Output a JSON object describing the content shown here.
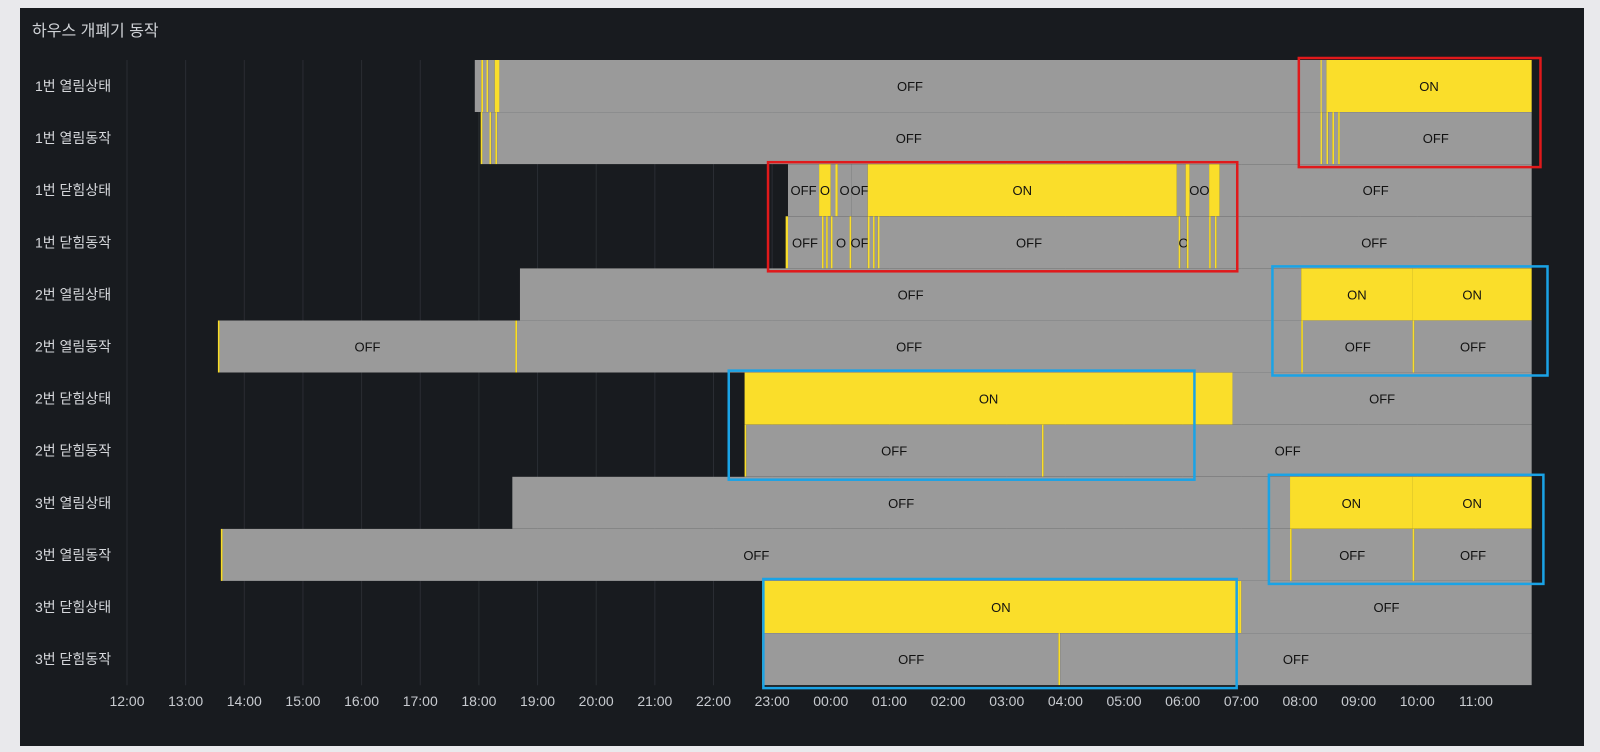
{
  "panel": {
    "title": "하우스 개폐기 동작"
  },
  "colors": {
    "on": "#fade2a",
    "off": "#9a9a9a",
    "panel_bg": "#181b1f",
    "grid": "#2a2d33",
    "highlight_red": "#e0191b",
    "highlight_blue": "#1aa3e6"
  },
  "chart_data": {
    "type": "state-timeline",
    "x_unit": "hours since 12:00",
    "x_ticks": [
      "12:00",
      "13:00",
      "14:00",
      "15:00",
      "16:00",
      "17:00",
      "18:00",
      "19:00",
      "20:00",
      "21:00",
      "22:00",
      "23:00",
      "00:00",
      "01:00",
      "02:00",
      "03:00",
      "04:00",
      "05:00",
      "06:00",
      "07:00",
      "08:00",
      "09:00",
      "10:00",
      "11:00"
    ],
    "xlim": [
      0,
      23.95
    ],
    "rows": [
      {
        "label": "1번 열림상태",
        "segments": [
          [
            5.93,
            6.04,
            "OFF",
            ""
          ],
          [
            6.04,
            6.07,
            "ON",
            ""
          ],
          [
            6.07,
            6.13,
            "OFF",
            ""
          ],
          [
            6.13,
            6.16,
            "ON",
            ""
          ],
          [
            6.16,
            6.27,
            "OFF",
            ""
          ],
          [
            6.27,
            6.35,
            "ON",
            ""
          ],
          [
            6.35,
            20.35,
            "OFF",
            "OFF"
          ],
          [
            20.35,
            20.37,
            "ON",
            ""
          ],
          [
            20.37,
            20.45,
            "OFF",
            ""
          ],
          [
            20.45,
            23.95,
            "ON",
            "ON"
          ]
        ]
      },
      {
        "label": "1번 열림동작",
        "segments": [
          [
            6.03,
            6.06,
            "ON",
            ""
          ],
          [
            6.06,
            6.18,
            "OFF",
            ""
          ],
          [
            6.18,
            6.21,
            "ON",
            ""
          ],
          [
            6.21,
            6.28,
            "OFF",
            ""
          ],
          [
            6.28,
            6.31,
            "ON",
            ""
          ],
          [
            6.31,
            20.35,
            "OFF",
            "OFF"
          ],
          [
            20.35,
            20.38,
            "ON",
            ""
          ],
          [
            20.38,
            20.45,
            "OFF",
            ""
          ],
          [
            20.45,
            20.48,
            "ON",
            ""
          ],
          [
            20.48,
            20.55,
            "OFF",
            ""
          ],
          [
            20.55,
            20.58,
            "ON",
            ""
          ],
          [
            20.58,
            20.65,
            "OFF",
            ""
          ],
          [
            20.65,
            20.68,
            "ON",
            ""
          ],
          [
            20.68,
            23.95,
            "OFF",
            "OFF"
          ]
        ]
      },
      {
        "label": "1번 닫힘상태",
        "segments": [
          [
            11.27,
            11.8,
            "OFF",
            "OFF"
          ],
          [
            11.8,
            12.0,
            "ON",
            "O"
          ],
          [
            12.0,
            12.08,
            "OFF",
            ""
          ],
          [
            12.08,
            12.12,
            "ON",
            ""
          ],
          [
            12.12,
            12.35,
            "OFF",
            "O"
          ],
          [
            12.35,
            12.63,
            "OFF",
            "OF"
          ],
          [
            12.63,
            17.9,
            "ON",
            "ON"
          ],
          [
            17.9,
            18.05,
            "OFF",
            ""
          ],
          [
            18.05,
            18.12,
            "ON",
            ""
          ],
          [
            18.12,
            18.45,
            "OFF",
            "OO"
          ],
          [
            18.45,
            18.63,
            "ON",
            ""
          ],
          [
            18.63,
            23.95,
            "OFF",
            "OFF"
          ]
        ]
      },
      {
        "label": "1번 닫힘동작",
        "segments": [
          [
            11.23,
            11.27,
            "ON",
            ""
          ],
          [
            11.27,
            11.85,
            "OFF",
            "OFF"
          ],
          [
            11.85,
            11.88,
            "ON",
            ""
          ],
          [
            11.88,
            11.92,
            "OFF",
            ""
          ],
          [
            11.92,
            11.95,
            "ON",
            ""
          ],
          [
            11.95,
            12.0,
            "OFF",
            ""
          ],
          [
            12.0,
            12.03,
            "ON",
            ""
          ],
          [
            12.03,
            12.32,
            "OFF",
            "O"
          ],
          [
            12.32,
            12.35,
            "ON",
            ""
          ],
          [
            12.35,
            12.63,
            "OFF",
            "OF"
          ],
          [
            12.63,
            12.66,
            "ON",
            ""
          ],
          [
            12.66,
            12.72,
            "OFF",
            ""
          ],
          [
            12.72,
            12.75,
            "ON",
            ""
          ],
          [
            12.75,
            12.8,
            "OFF",
            ""
          ],
          [
            12.8,
            12.83,
            "ON",
            ""
          ],
          [
            12.83,
            17.93,
            "OFF",
            "OFF"
          ],
          [
            17.93,
            17.96,
            "ON",
            ""
          ],
          [
            17.96,
            18.07,
            "OFF",
            "O"
          ],
          [
            18.07,
            18.1,
            "ON",
            ""
          ],
          [
            18.1,
            18.45,
            "OFF",
            ""
          ],
          [
            18.45,
            18.48,
            "ON",
            ""
          ],
          [
            18.48,
            18.55,
            "OFF",
            ""
          ],
          [
            18.55,
            18.58,
            "ON",
            ""
          ],
          [
            18.58,
            23.95,
            "OFF",
            "OFF"
          ]
        ]
      },
      {
        "label": "2번 열림상태",
        "segments": [
          [
            6.7,
            20.02,
            "OFF",
            "OFF"
          ],
          [
            20.02,
            21.92,
            "ON",
            "ON"
          ],
          [
            21.92,
            23.95,
            "ON",
            "ON"
          ]
        ]
      },
      {
        "label": "2번 열림동작",
        "segments": [
          [
            1.55,
            1.58,
            "ON",
            ""
          ],
          [
            1.58,
            6.62,
            "OFF",
            "OFF"
          ],
          [
            6.62,
            6.65,
            "ON",
            ""
          ],
          [
            6.65,
            20.02,
            "OFF",
            "OFF"
          ],
          [
            20.02,
            20.05,
            "ON",
            ""
          ],
          [
            20.05,
            21.92,
            "OFF",
            "OFF"
          ],
          [
            21.92,
            21.95,
            "ON",
            ""
          ],
          [
            21.95,
            23.95,
            "OFF",
            "OFF"
          ]
        ]
      },
      {
        "label": "2번 닫힘상태",
        "segments": [
          [
            10.53,
            18.85,
            "ON",
            "ON"
          ],
          [
            18.85,
            23.95,
            "OFF",
            "OFF"
          ]
        ]
      },
      {
        "label": "2번 닫힘동작",
        "segments": [
          [
            10.53,
            10.56,
            "ON",
            ""
          ],
          [
            10.56,
            15.6,
            "OFF",
            "OFF"
          ],
          [
            15.6,
            15.63,
            "ON",
            ""
          ],
          [
            15.63,
            23.95,
            "OFF",
            "OFF"
          ]
        ]
      },
      {
        "label": "3번 열림상태",
        "segments": [
          [
            6.57,
            19.83,
            "OFF",
            "OFF"
          ],
          [
            19.83,
            21.92,
            "ON",
            "ON"
          ],
          [
            21.92,
            23.95,
            "ON",
            "ON"
          ]
        ]
      },
      {
        "label": "3번 열림동작",
        "segments": [
          [
            1.6,
            1.63,
            "ON",
            ""
          ],
          [
            1.63,
            19.83,
            "OFF",
            "OFF"
          ],
          [
            19.83,
            19.86,
            "ON",
            ""
          ],
          [
            19.86,
            21.92,
            "OFF",
            "OFF"
          ],
          [
            21.92,
            21.95,
            "ON",
            ""
          ],
          [
            21.95,
            23.95,
            "OFF",
            "OFF"
          ]
        ]
      },
      {
        "label": "3번 닫힘상태",
        "segments": [
          [
            10.83,
            18.97,
            "ON",
            "ON"
          ],
          [
            18.97,
            19.0,
            "ON",
            ""
          ],
          [
            19.0,
            23.95,
            "OFF",
            "OFF"
          ]
        ]
      },
      {
        "label": "3번 닫힘동작",
        "segments": [
          [
            10.83,
            10.86,
            "ON",
            ""
          ],
          [
            10.86,
            15.88,
            "OFF",
            "OFF"
          ],
          [
            15.88,
            15.91,
            "ON",
            ""
          ],
          [
            15.91,
            23.95,
            "OFF",
            "OFF"
          ]
        ]
      }
    ],
    "highlights": [
      {
        "color": "red",
        "rows": [
          0,
          1
        ],
        "x": [
          19.98,
          24.1
        ]
      },
      {
        "color": "red",
        "rows": [
          2,
          3
        ],
        "x": [
          10.93,
          18.93
        ]
      },
      {
        "color": "blue",
        "rows": [
          4,
          5
        ],
        "x": [
          19.53,
          24.22
        ]
      },
      {
        "color": "blue",
        "rows": [
          6,
          7
        ],
        "x": [
          10.26,
          18.2
        ]
      },
      {
        "color": "blue",
        "rows": [
          8,
          9
        ],
        "x": [
          19.47,
          24.15
        ]
      },
      {
        "color": "blue",
        "rows": [
          10,
          11
        ],
        "x": [
          10.85,
          18.92
        ]
      }
    ]
  }
}
